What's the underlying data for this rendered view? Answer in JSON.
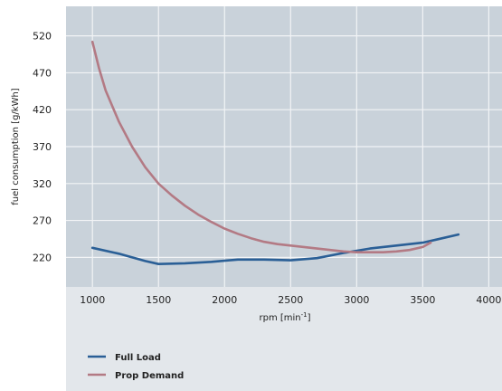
{
  "chart_data": {
    "type": "line",
    "xlabel_main": "rpm [min",
    "xlabel_sup": "-1",
    "xlabel_end": "]",
    "ylabel": "fuel consumption [g/kWh]",
    "xlim": [
      800,
      4100
    ],
    "ylim": [
      180,
      560
    ],
    "x_ticks": [
      1000,
      1500,
      2000,
      2500,
      3000,
      3500,
      4000
    ],
    "y_ticks": [
      220,
      270,
      320,
      370,
      420,
      470,
      520
    ],
    "grid": true,
    "legend_position": "bottom-left",
    "series": [
      {
        "name": "Full Load",
        "color": "#2a5f96",
        "x": [
          1000,
          1200,
          1400,
          1500,
          1700,
          1900,
          2100,
          2300,
          2500,
          2700,
          2900,
          3100,
          3300,
          3500,
          3600,
          3770
        ],
        "y": [
          233,
          225,
          215,
          211,
          212,
          214,
          217,
          217,
          216,
          219,
          226,
          232,
          236,
          240,
          244,
          251
        ]
      },
      {
        "name": "Prop Demand",
        "color": "#b37a84",
        "x": [
          1000,
          1050,
          1100,
          1200,
          1300,
          1400,
          1500,
          1600,
          1700,
          1800,
          1900,
          2000,
          2100,
          2200,
          2300,
          2400,
          2500,
          2600,
          2700,
          2800,
          2900,
          3000,
          3100,
          3200,
          3300,
          3400,
          3500,
          3560
        ],
        "y": [
          512,
          476,
          446,
          404,
          370,
          342,
          320,
          304,
          290,
          278,
          268,
          259,
          252,
          246,
          241,
          238,
          236,
          234,
          232,
          230,
          228,
          227,
          227,
          227,
          228,
          230,
          234,
          240
        ]
      }
    ]
  }
}
